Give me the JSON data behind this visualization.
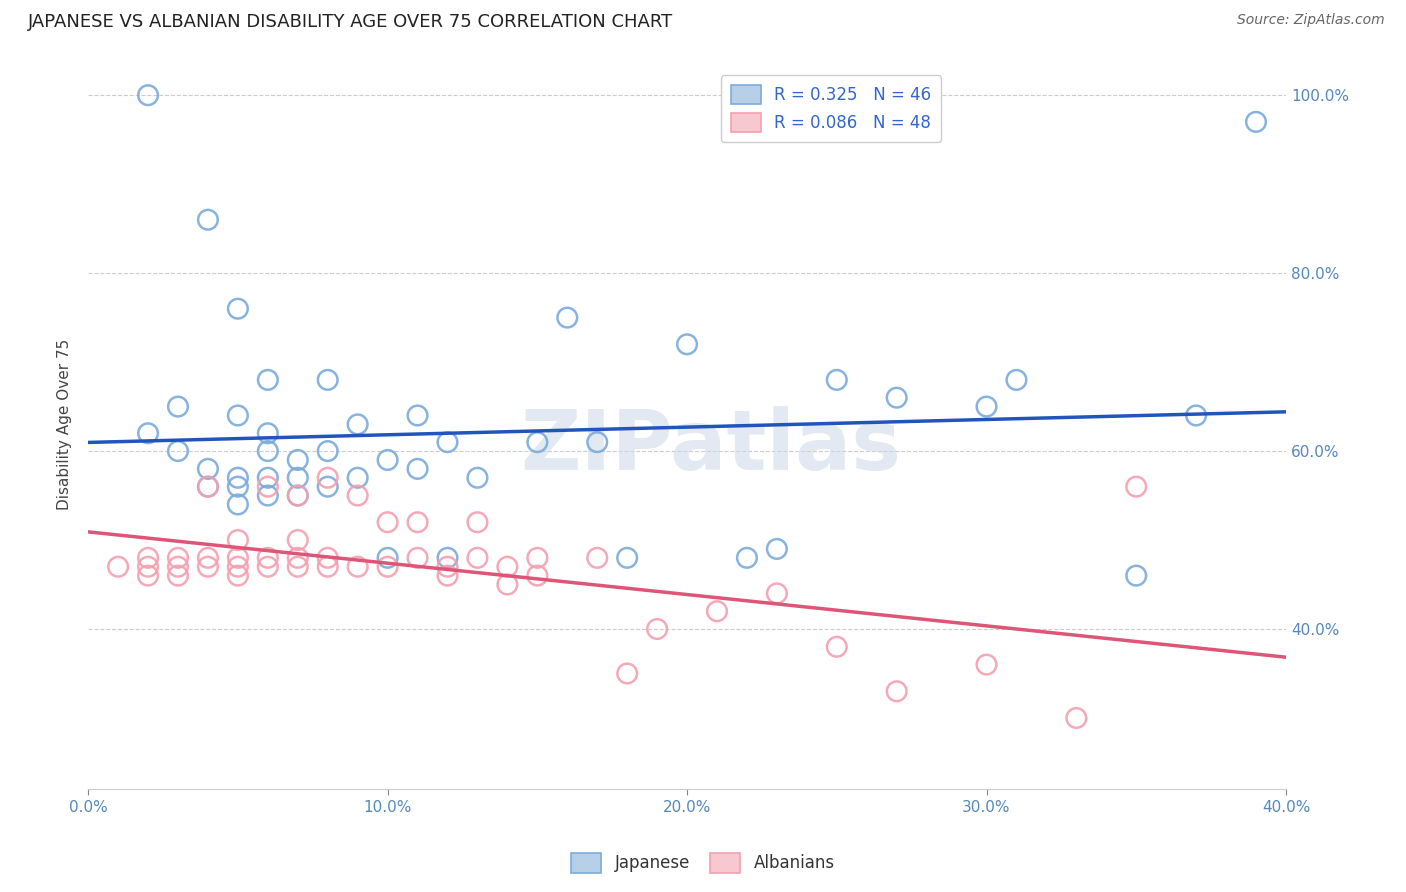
{
  "title": "JAPANESE VS ALBANIAN DISABILITY AGE OVER 75 CORRELATION CHART",
  "source": "Source: ZipAtlas.com",
  "ylabel": "Disability Age Over 75",
  "watermark": "ZIPatlas",
  "japanese_color": "#7aabdb",
  "albanian_color": "#f4a0b0",
  "japanese_line_color": "#2255bb",
  "albanian_line_color": "#dd5577",
  "japanese_x": [
    0.02,
    0.04,
    0.05,
    0.02,
    0.03,
    0.03,
    0.04,
    0.04,
    0.05,
    0.05,
    0.05,
    0.05,
    0.06,
    0.06,
    0.06,
    0.06,
    0.06,
    0.07,
    0.07,
    0.07,
    0.08,
    0.08,
    0.08,
    0.09,
    0.09,
    0.1,
    0.1,
    0.11,
    0.11,
    0.12,
    0.12,
    0.13,
    0.15,
    0.16,
    0.17,
    0.18,
    0.2,
    0.22,
    0.23,
    0.25,
    0.27,
    0.3,
    0.31,
    0.35,
    0.37,
    0.39
  ],
  "japanese_y": [
    1.0,
    0.86,
    0.76,
    0.62,
    0.6,
    0.65,
    0.56,
    0.58,
    0.54,
    0.56,
    0.57,
    0.64,
    0.55,
    0.57,
    0.6,
    0.62,
    0.68,
    0.55,
    0.57,
    0.59,
    0.56,
    0.6,
    0.68,
    0.57,
    0.63,
    0.48,
    0.59,
    0.58,
    0.64,
    0.48,
    0.61,
    0.57,
    0.61,
    0.75,
    0.61,
    0.48,
    0.72,
    0.48,
    0.49,
    0.68,
    0.66,
    0.65,
    0.68,
    0.46,
    0.64,
    0.97
  ],
  "albanian_x": [
    0.01,
    0.02,
    0.02,
    0.02,
    0.03,
    0.03,
    0.03,
    0.04,
    0.04,
    0.04,
    0.05,
    0.05,
    0.05,
    0.05,
    0.06,
    0.06,
    0.06,
    0.07,
    0.07,
    0.07,
    0.07,
    0.08,
    0.08,
    0.08,
    0.09,
    0.09,
    0.1,
    0.1,
    0.11,
    0.11,
    0.12,
    0.12,
    0.13,
    0.13,
    0.14,
    0.14,
    0.15,
    0.15,
    0.17,
    0.18,
    0.19,
    0.21,
    0.23,
    0.25,
    0.27,
    0.3,
    0.33,
    0.35
  ],
  "albanian_y": [
    0.47,
    0.46,
    0.48,
    0.47,
    0.46,
    0.48,
    0.47,
    0.47,
    0.48,
    0.56,
    0.46,
    0.47,
    0.48,
    0.5,
    0.47,
    0.48,
    0.56,
    0.47,
    0.48,
    0.5,
    0.55,
    0.47,
    0.48,
    0.57,
    0.47,
    0.55,
    0.47,
    0.52,
    0.48,
    0.52,
    0.46,
    0.47,
    0.48,
    0.52,
    0.45,
    0.47,
    0.46,
    0.48,
    0.48,
    0.35,
    0.4,
    0.42,
    0.44,
    0.38,
    0.33,
    0.36,
    0.3,
    0.56
  ],
  "xlim": [
    0.0,
    0.4
  ],
  "ylim": [
    0.22,
    1.04
  ],
  "ytick_values": [
    0.4,
    0.6,
    0.8,
    1.0
  ],
  "ytick_labels": [
    "40.0%",
    "60.0%",
    "80.0%",
    "100.0%"
  ],
  "xtick_values": [
    0.0,
    0.1,
    0.2,
    0.3,
    0.4
  ],
  "xtick_labels": [
    "0.0%",
    "10.0%",
    "20.0%",
    "30.0%",
    "40.0%"
  ],
  "background_color": "#ffffff",
  "grid_color": "#cccccc",
  "title_fontsize": 13,
  "axis_label_fontsize": 11,
  "tick_fontsize": 11,
  "source_fontsize": 10,
  "legend_top_label1": "R = 0.325   N = 46",
  "legend_top_label2": "R = 0.086   N = 48",
  "legend_bottom_label1": "Japanese",
  "legend_bottom_label2": "Albanians"
}
